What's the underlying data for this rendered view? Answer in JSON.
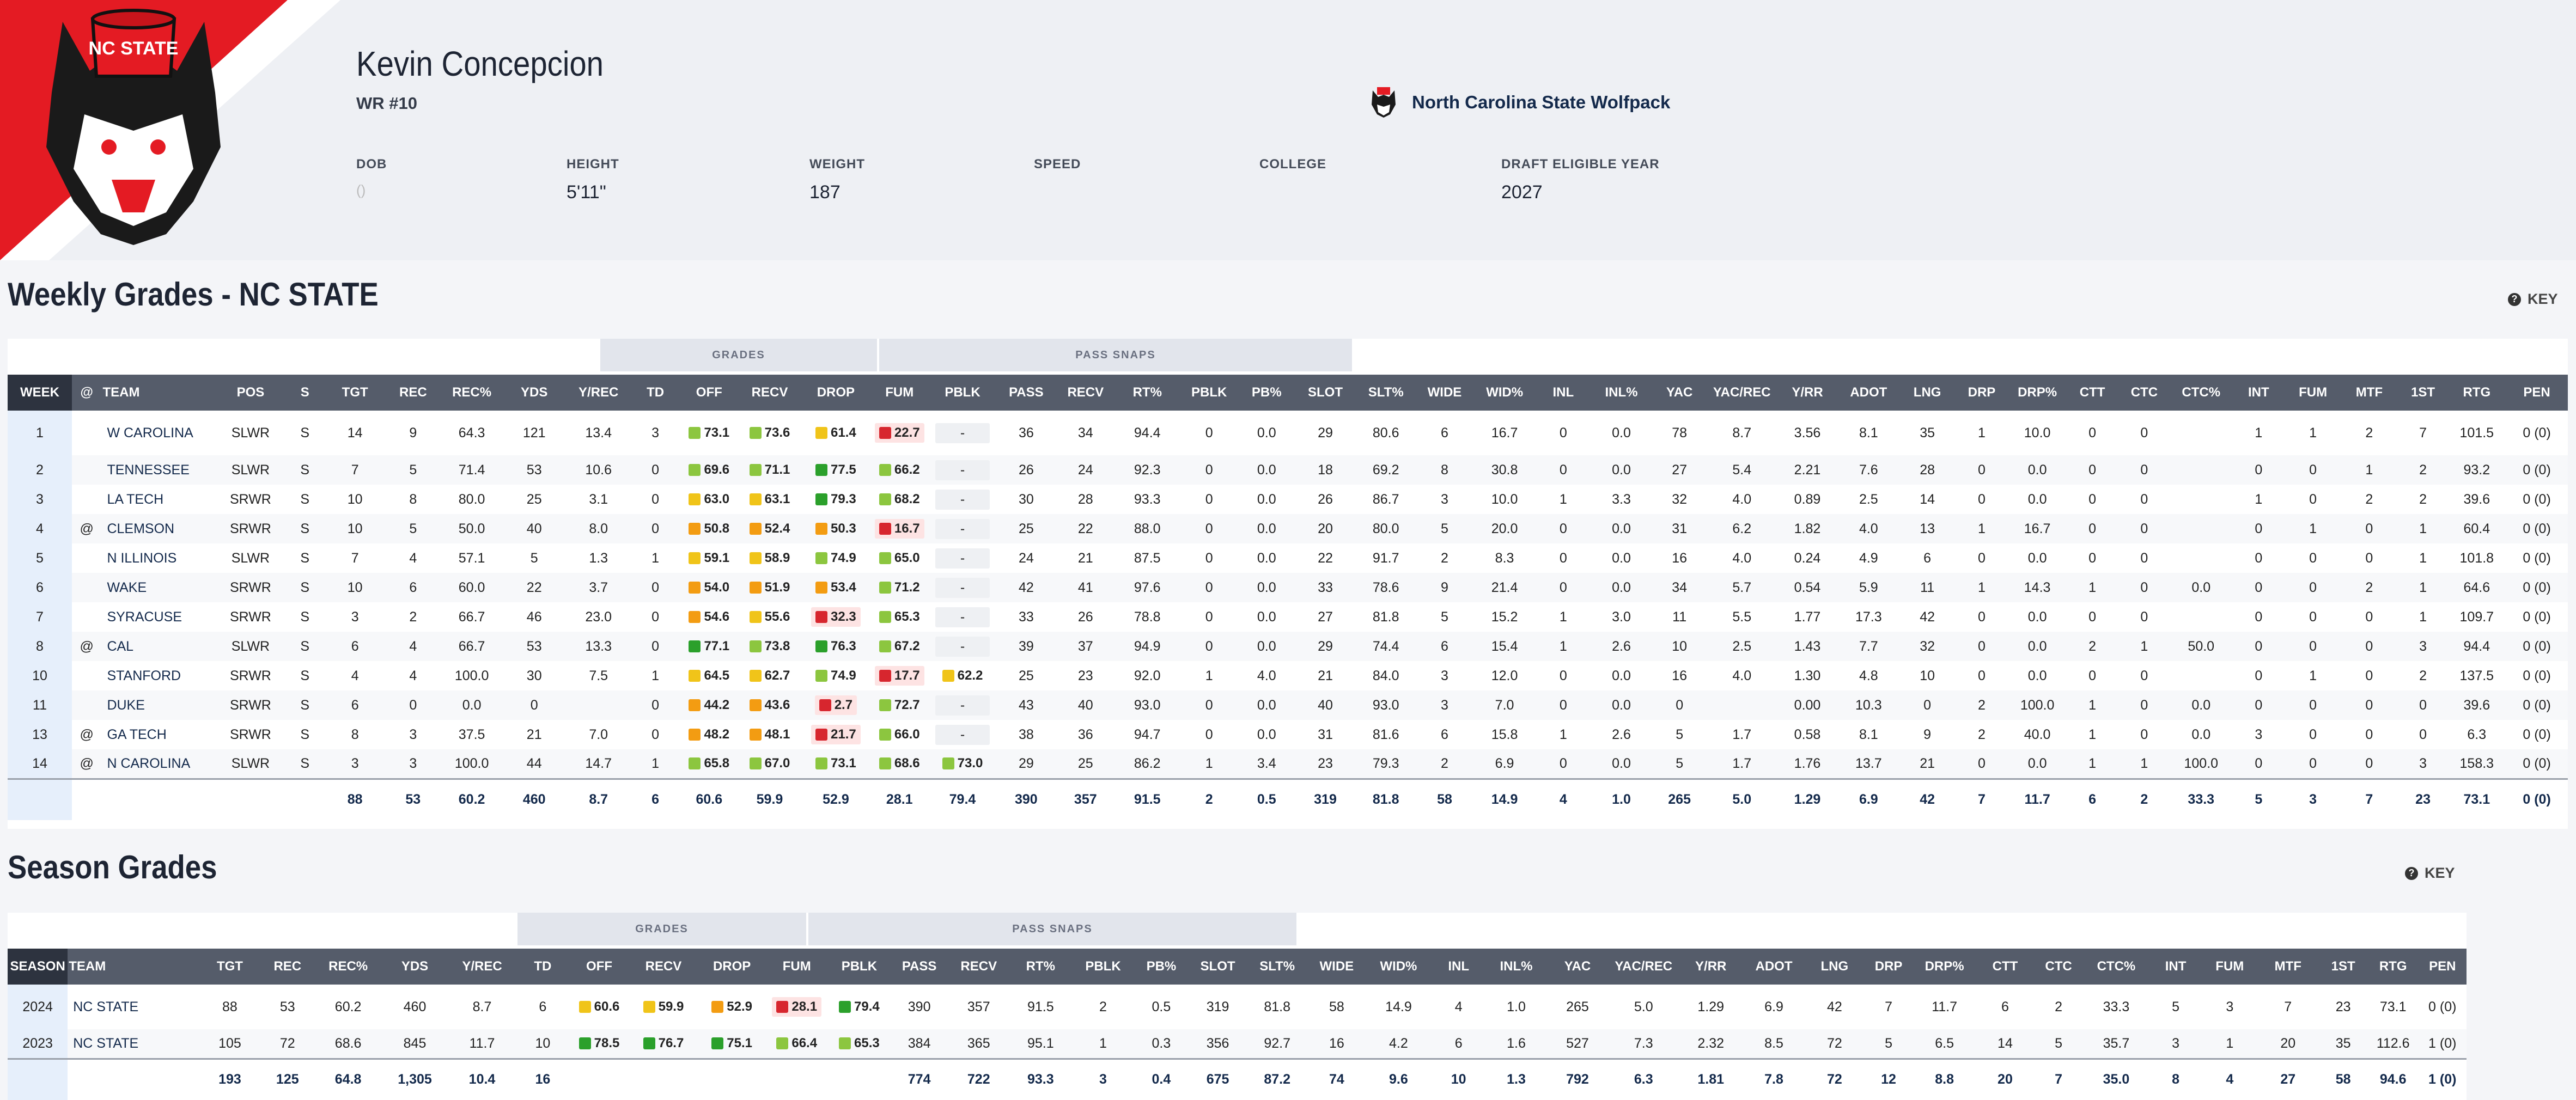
{
  "player": {
    "name": "Kevin Concepcion",
    "position": "WR #10",
    "team": "North Carolina State Wolfpack",
    "logo_text": "NC STATE"
  },
  "meta": [
    {
      "label": "DOB",
      "value": "()"
    },
    {
      "label": "HEIGHT",
      "value": "5'11\""
    },
    {
      "label": "WEIGHT",
      "value": "187"
    },
    {
      "label": "SPEED",
      "value": ""
    },
    {
      "label": "COLLEGE",
      "value": ""
    },
    {
      "label": "DRAFT ELIGIBLE YEAR",
      "value": "2027"
    }
  ],
  "colors": {
    "elite": "#2ba02b",
    "good": "#8cc63f",
    "avg": "#f0c419",
    "below": "#f39c12",
    "poor": "#d7262e",
    "poor_bg": "#fde3e3"
  },
  "weekly": {
    "title": "Weekly Grades - NC STATE",
    "key_label": "KEY",
    "groups": {
      "grades": "GRADES",
      "pass_snaps": "PASS SNAPS"
    },
    "columns": [
      "WEEK",
      "@",
      "TEAM",
      "POS",
      "S",
      "TGT",
      "REC",
      "REC%",
      "YDS",
      "Y/REC",
      "TD",
      "OFF",
      "RECV",
      "DROP",
      "FUM",
      "PBLK",
      "PASS",
      "RECV",
      "RT%",
      "PBLK",
      "PB%",
      "SLOT",
      "SLT%",
      "WIDE",
      "WID%",
      "INL",
      "INL%",
      "YAC",
      "YAC/REC",
      "Y/RR",
      "ADOT",
      "LNG",
      "DRP",
      "DRP%",
      "CTT",
      "CTC",
      "CTC%",
      "INT",
      "FUM",
      "MTF",
      "1ST",
      "RTG",
      "PEN"
    ],
    "rows": [
      [
        "1",
        "",
        "W CAROLINA",
        "SLWR",
        "S",
        "14",
        "9",
        "64.3",
        "121",
        "13.4",
        "3",
        "73.1",
        "73.6",
        "61.4",
        "22.7",
        "-",
        "36",
        "34",
        "94.4",
        "0",
        "0.0",
        "29",
        "80.6",
        "6",
        "16.7",
        "0",
        "0.0",
        "78",
        "8.7",
        "3.56",
        "8.1",
        "35",
        "1",
        "10.0",
        "0",
        "0",
        "",
        "1",
        "1",
        "2",
        "7",
        "101.5",
        "0 (0)"
      ],
      [
        "2",
        "",
        "TENNESSEE",
        "SLWR",
        "S",
        "7",
        "5",
        "71.4",
        "53",
        "10.6",
        "0",
        "69.6",
        "71.1",
        "77.5",
        "66.2",
        "-",
        "26",
        "24",
        "92.3",
        "0",
        "0.0",
        "18",
        "69.2",
        "8",
        "30.8",
        "0",
        "0.0",
        "27",
        "5.4",
        "2.21",
        "7.6",
        "28",
        "0",
        "0.0",
        "0",
        "0",
        "",
        "0",
        "0",
        "1",
        "2",
        "93.2",
        "0 (0)"
      ],
      [
        "3",
        "",
        "LA TECH",
        "SRWR",
        "S",
        "10",
        "8",
        "80.0",
        "25",
        "3.1",
        "0",
        "63.0",
        "63.1",
        "79.3",
        "68.2",
        "-",
        "30",
        "28",
        "93.3",
        "0",
        "0.0",
        "26",
        "86.7",
        "3",
        "10.0",
        "1",
        "3.3",
        "32",
        "4.0",
        "0.89",
        "2.5",
        "14",
        "0",
        "0.0",
        "0",
        "0",
        "",
        "1",
        "0",
        "2",
        "2",
        "39.6",
        "0 (0)"
      ],
      [
        "4",
        "@",
        "CLEMSON",
        "SRWR",
        "S",
        "10",
        "5",
        "50.0",
        "40",
        "8.0",
        "0",
        "50.8",
        "52.4",
        "50.3",
        "16.7",
        "-",
        "25",
        "22",
        "88.0",
        "0",
        "0.0",
        "20",
        "80.0",
        "5",
        "20.0",
        "0",
        "0.0",
        "31",
        "6.2",
        "1.82",
        "4.0",
        "13",
        "1",
        "16.7",
        "0",
        "0",
        "",
        "0",
        "1",
        "0",
        "1",
        "60.4",
        "0 (0)"
      ],
      [
        "5",
        "",
        "N ILLINOIS",
        "SLWR",
        "S",
        "7",
        "4",
        "57.1",
        "5",
        "1.3",
        "1",
        "59.1",
        "58.9",
        "74.9",
        "65.0",
        "-",
        "24",
        "21",
        "87.5",
        "0",
        "0.0",
        "22",
        "91.7",
        "2",
        "8.3",
        "0",
        "0.0",
        "16",
        "4.0",
        "0.24",
        "4.9",
        "6",
        "0",
        "0.0",
        "0",
        "0",
        "",
        "0",
        "0",
        "0",
        "1",
        "101.8",
        "0 (0)"
      ],
      [
        "6",
        "",
        "WAKE",
        "SRWR",
        "S",
        "10",
        "6",
        "60.0",
        "22",
        "3.7",
        "0",
        "54.0",
        "51.9",
        "53.4",
        "71.2",
        "-",
        "42",
        "41",
        "97.6",
        "0",
        "0.0",
        "33",
        "78.6",
        "9",
        "21.4",
        "0",
        "0.0",
        "34",
        "5.7",
        "0.54",
        "5.9",
        "11",
        "1",
        "14.3",
        "1",
        "0",
        "0.0",
        "0",
        "0",
        "2",
        "1",
        "64.6",
        "0 (0)"
      ],
      [
        "7",
        "",
        "SYRACUSE",
        "SRWR",
        "S",
        "3",
        "2",
        "66.7",
        "46",
        "23.0",
        "0",
        "54.6",
        "55.6",
        "32.3",
        "65.3",
        "-",
        "33",
        "26",
        "78.8",
        "0",
        "0.0",
        "27",
        "81.8",
        "5",
        "15.2",
        "1",
        "3.0",
        "11",
        "5.5",
        "1.77",
        "17.3",
        "42",
        "0",
        "0.0",
        "0",
        "0",
        "",
        "0",
        "0",
        "0",
        "1",
        "109.7",
        "0 (0)"
      ],
      [
        "8",
        "@",
        "CAL",
        "SLWR",
        "S",
        "6",
        "4",
        "66.7",
        "53",
        "13.3",
        "0",
        "77.1",
        "73.8",
        "76.3",
        "67.2",
        "-",
        "39",
        "37",
        "94.9",
        "0",
        "0.0",
        "29",
        "74.4",
        "6",
        "15.4",
        "1",
        "2.6",
        "10",
        "2.5",
        "1.43",
        "7.7",
        "32",
        "0",
        "0.0",
        "2",
        "1",
        "50.0",
        "0",
        "0",
        "0",
        "3",
        "94.4",
        "0 (0)"
      ],
      [
        "10",
        "",
        "STANFORD",
        "SRWR",
        "S",
        "4",
        "4",
        "100.0",
        "30",
        "7.5",
        "1",
        "64.5",
        "62.7",
        "74.9",
        "17.7",
        "62.2",
        "25",
        "23",
        "92.0",
        "1",
        "4.0",
        "21",
        "84.0",
        "3",
        "12.0",
        "0",
        "0.0",
        "16",
        "4.0",
        "1.30",
        "4.8",
        "10",
        "0",
        "0.0",
        "0",
        "0",
        "",
        "0",
        "1",
        "0",
        "2",
        "137.5",
        "0 (0)"
      ],
      [
        "11",
        "",
        "DUKE",
        "SRWR",
        "S",
        "6",
        "0",
        "0.0",
        "0",
        "",
        "0",
        "44.2",
        "43.6",
        "2.7",
        "72.7",
        "-",
        "43",
        "40",
        "93.0",
        "0",
        "0.0",
        "40",
        "93.0",
        "3",
        "7.0",
        "0",
        "0.0",
        "0",
        "",
        "0.00",
        "10.3",
        "0",
        "2",
        "100.0",
        "1",
        "0",
        "0.0",
        "0",
        "0",
        "0",
        "0",
        "39.6",
        "0 (0)"
      ],
      [
        "13",
        "@",
        "GA TECH",
        "SRWR",
        "S",
        "8",
        "3",
        "37.5",
        "21",
        "7.0",
        "0",
        "48.2",
        "48.1",
        "21.7",
        "66.0",
        "-",
        "38",
        "36",
        "94.7",
        "0",
        "0.0",
        "31",
        "81.6",
        "6",
        "15.8",
        "1",
        "2.6",
        "5",
        "1.7",
        "0.58",
        "8.1",
        "9",
        "2",
        "40.0",
        "1",
        "0",
        "0.0",
        "3",
        "0",
        "0",
        "0",
        "6.3",
        "0 (0)"
      ],
      [
        "14",
        "@",
        "N CAROLINA",
        "SLWR",
        "S",
        "3",
        "3",
        "100.0",
        "44",
        "14.7",
        "1",
        "65.8",
        "67.0",
        "73.1",
        "68.6",
        "73.0",
        "29",
        "25",
        "86.2",
        "1",
        "3.4",
        "23",
        "79.3",
        "2",
        "6.9",
        "0",
        "0.0",
        "5",
        "1.7",
        "1.76",
        "13.7",
        "21",
        "0",
        "0.0",
        "1",
        "1",
        "100.0",
        "0",
        "0",
        "0",
        "3",
        "158.3",
        "0 (0)"
      ]
    ],
    "totals": [
      "",
      "",
      "",
      "",
      "",
      "88",
      "53",
      "60.2",
      "460",
      "8.7",
      "6",
      "60.6",
      "59.9",
      "52.9",
      "28.1",
      "79.4",
      "390",
      "357",
      "91.5",
      "2",
      "0.5",
      "319",
      "81.8",
      "58",
      "14.9",
      "4",
      "1.0",
      "265",
      "5.0",
      "1.29",
      "6.9",
      "42",
      "7",
      "11.7",
      "6",
      "2",
      "33.3",
      "5",
      "3",
      "7",
      "23",
      "73.1",
      "0 (0)"
    ]
  },
  "season": {
    "title": "Season Grades",
    "key_label": "KEY",
    "groups": {
      "grades": "GRADES",
      "pass_snaps": "PASS SNAPS"
    },
    "columns": [
      "SEASON",
      "TEAM",
      "TGT",
      "REC",
      "REC%",
      "YDS",
      "Y/REC",
      "TD",
      "OFF",
      "RECV",
      "DROP",
      "FUM",
      "PBLK",
      "PASS",
      "RECV",
      "RT%",
      "PBLK",
      "PB%",
      "SLOT",
      "SLT%",
      "WIDE",
      "WID%",
      "INL",
      "INL%",
      "YAC",
      "YAC/REC",
      "Y/RR",
      "ADOT",
      "LNG",
      "DRP",
      "DRP%",
      "CTT",
      "CTC",
      "CTC%",
      "INT",
      "FUM",
      "MTF",
      "1ST",
      "RTG",
      "PEN"
    ],
    "rows": [
      [
        "2024",
        "NC STATE",
        "88",
        "53",
        "60.2",
        "460",
        "8.7",
        "6",
        "60.6",
        "59.9",
        "52.9",
        "28.1",
        "79.4",
        "390",
        "357",
        "91.5",
        "2",
        "0.5",
        "319",
        "81.8",
        "58",
        "14.9",
        "4",
        "1.0",
        "265",
        "5.0",
        "1.29",
        "6.9",
        "42",
        "7",
        "11.7",
        "6",
        "2",
        "33.3",
        "5",
        "3",
        "7",
        "23",
        "73.1",
        "0 (0)"
      ],
      [
        "2023",
        "NC STATE",
        "105",
        "72",
        "68.6",
        "845",
        "11.7",
        "10",
        "78.5",
        "76.7",
        "75.1",
        "66.4",
        "65.3",
        "384",
        "365",
        "95.1",
        "1",
        "0.3",
        "356",
        "92.7",
        "16",
        "4.2",
        "6",
        "1.6",
        "527",
        "7.3",
        "2.32",
        "8.5",
        "72",
        "5",
        "6.5",
        "14",
        "5",
        "35.7",
        "3",
        "1",
        "20",
        "35",
        "112.6",
        "1 (0)"
      ]
    ],
    "totals": [
      "",
      "",
      "193",
      "125",
      "64.8",
      "1,305",
      "10.4",
      "16",
      "",
      "",
      "",
      "",
      "",
      "774",
      "722",
      "93.3",
      "3",
      "0.4",
      "675",
      "87.2",
      "74",
      "9.6",
      "10",
      "1.3",
      "792",
      "6.3",
      "1.81",
      "7.8",
      "72",
      "12",
      "8.8",
      "20",
      "7",
      "35.0",
      "8",
      "4",
      "27",
      "58",
      "94.6",
      "1 (0)"
    ]
  }
}
